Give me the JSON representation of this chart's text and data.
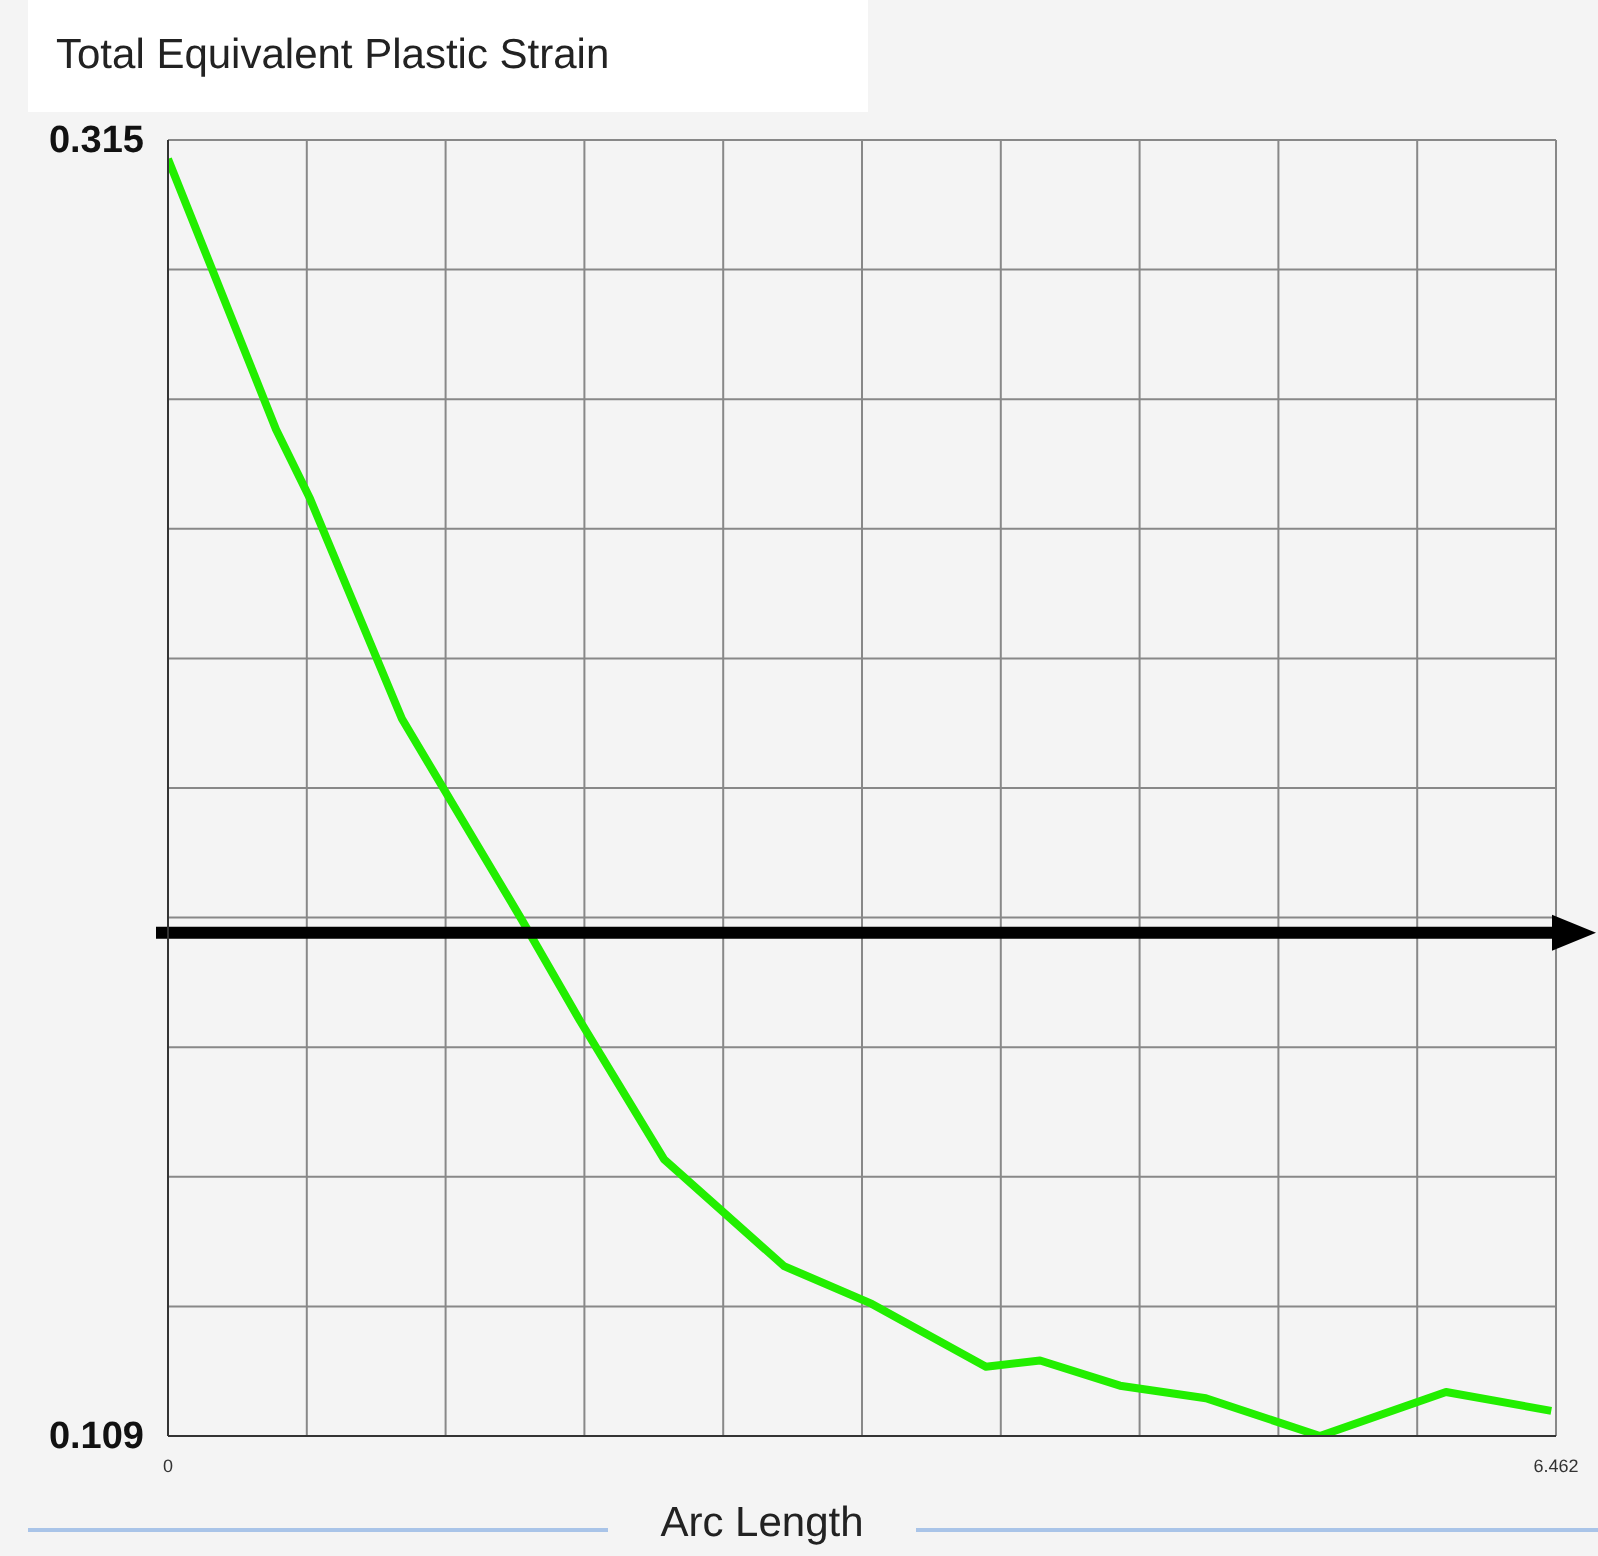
{
  "chart_data": {
    "type": "line",
    "title": "Total Equivalent Plastic Strain",
    "xlabel": "Arc Length",
    "x": [
      0,
      0.503,
      0.661,
      1.089,
      1.648,
      1.918,
      2.309,
      2.868,
      3.277,
      3.808,
      4.06,
      4.432,
      4.832,
      5.363,
      5.95,
      6.44
    ],
    "series": [
      {
        "color": "#22ee00",
        "values": [
          0.312,
          0.269,
          0.258,
          0.223,
          0.191,
          0.175,
          0.153,
          0.136,
          0.13,
          0.12,
          0.121,
          0.117,
          0.115,
          0.109,
          0.116,
          0.113
        ]
      }
    ],
    "xlim": [
      0,
      6.462
    ],
    "xticks": [
      0,
      {
        "value": 0.6462,
        "label": null
      },
      {
        "value": 1.2924,
        "label": null
      },
      {
        "value": 1.9386,
        "label": null
      },
      {
        "value": 2.5848,
        "label": null
      },
      {
        "value": 3.231,
        "label": null
      },
      {
        "value": 3.8772,
        "label": null
      },
      {
        "value": 4.5234,
        "label": null
      },
      {
        "value": 5.1696,
        "label": null
      },
      {
        "value": 5.8158,
        "label": null
      },
      6.462
    ],
    "ylim": [
      0.109,
      0.315
    ],
    "yticks": [
      0.109,
      {
        "value": 0.1296,
        "label": null
      },
      {
        "value": 0.1502,
        "label": null
      },
      {
        "value": 0.1708,
        "label": null
      },
      {
        "value": 0.1914,
        "label": null
      },
      {
        "value": 0.212,
        "label": null
      },
      {
        "value": 0.2326,
        "label": null
      },
      {
        "value": 0.2532,
        "label": null
      },
      {
        "value": 0.2738,
        "label": null
      },
      {
        "value": 0.2944,
        "label": null
      },
      0.315
    ],
    "ref_lines": [
      {
        "axis": "y",
        "value": 0.189,
        "color": "#000000"
      }
    ],
    "grid": true
  }
}
